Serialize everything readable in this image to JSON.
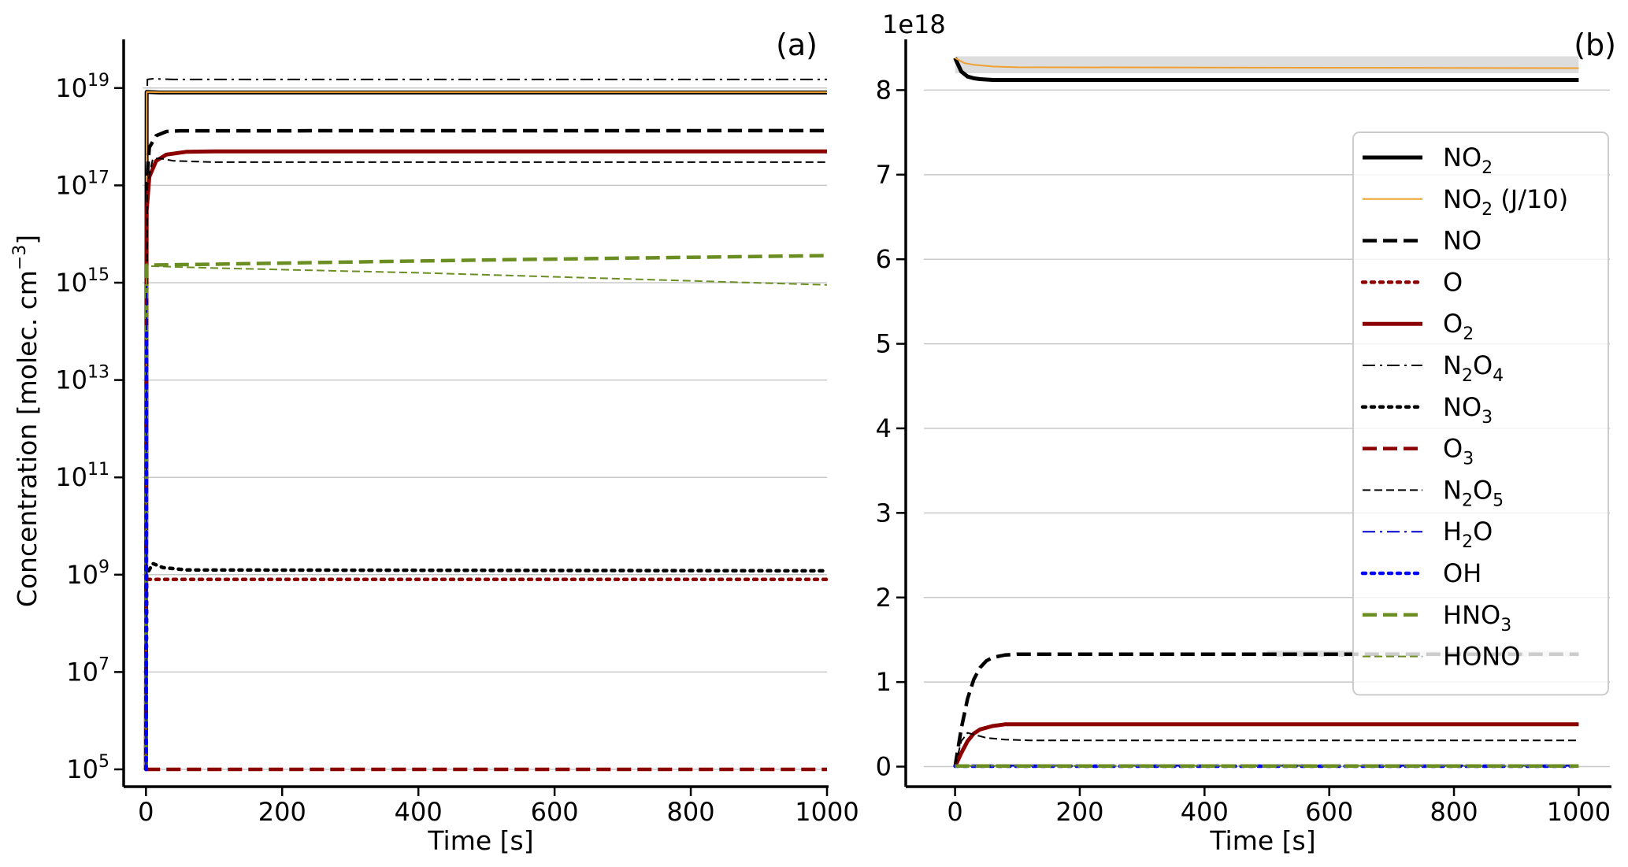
{
  "chart_data": [
    {
      "panel": "(a)",
      "type": "line",
      "xlabel": "Time [s]",
      "ylabel": "Concentration [molec. cm",
      "ylabel_sup": "−3",
      "ylabel_end": "]",
      "yscale": "log",
      "xlim": [
        -5,
        1000
      ],
      "ylim": [
        100000,
        1e+20
      ],
      "xticks": [
        {
          "v": 0,
          "label": "0"
        },
        {
          "v": 200,
          "label": "200"
        },
        {
          "v": 400,
          "label": "400"
        },
        {
          "v": 600,
          "label": "600"
        },
        {
          "v": 800,
          "label": "800"
        },
        {
          "v": 1000,
          "label": "1000"
        }
      ],
      "yticks": [
        {
          "v": 100000.0,
          "exp": "5"
        },
        {
          "v": 10000000.0,
          "exp": "7"
        },
        {
          "v": 1000000000.0,
          "exp": "9"
        },
        {
          "v": 100000000000.0,
          "exp": "11"
        },
        {
          "v": 10000000000000.0,
          "exp": "13"
        },
        {
          "v": 1000000000000000.0,
          "exp": "15"
        },
        {
          "v": 1e+17,
          "exp": "17"
        },
        {
          "v": 1e+19,
          "exp": "19"
        }
      ],
      "tick_base": "10",
      "grid": "horizontal",
      "series": [
        {
          "name": "N2O4",
          "style": "dashdot-thin",
          "color": "#000000",
          "x": [
            0,
            2,
            10,
            40,
            1000
          ],
          "y": [
            100000.0,
            1.5e+19,
            1.55e+19,
            1.5e+19,
            1.5e+19
          ]
        },
        {
          "name": "NO2",
          "style": "solid-thick",
          "color": "#000000",
          "x": [
            0,
            1,
            20,
            1000
          ],
          "y": [
            100000.0,
            8.3e+18,
            8.1e+18,
            8.1e+18
          ]
        },
        {
          "name": "NO2 (J/10)",
          "style": "solid-thin",
          "color": "#f0a030",
          "x": [
            0,
            1,
            20,
            1000
          ],
          "y": [
            100000.0,
            8.3e+18,
            8.2e+18,
            8.2e+18
          ]
        },
        {
          "name": "NO",
          "style": "dashed-thick",
          "color": "#000000",
          "x": [
            0,
            1,
            5,
            15,
            30,
            50,
            1000
          ],
          "y": [
            100000.0,
            1e+17,
            6e+17,
            1.05e+18,
            1.28e+18,
            1.32e+18,
            1.33e+18
          ]
        },
        {
          "name": "O2",
          "style": "solid-thick",
          "color": "#8b0000",
          "x": [
            0,
            1,
            5,
            15,
            30,
            60,
            100,
            1000
          ],
          "y": [
            100000.0,
            3e+16,
            1.5e+17,
            3.2e+17,
            4.3e+17,
            4.9e+17,
            5e+17,
            5e+17
          ]
        },
        {
          "name": "N2O5",
          "style": "dashed-thin",
          "color": "#000000",
          "x": [
            0,
            2,
            10,
            20,
            40,
            100,
            1000
          ],
          "y": [
            100000.0,
            1e+17,
            3.5e+17,
            3.6e+17,
            3.2e+17,
            3e+17,
            3e+17
          ]
        },
        {
          "name": "HNO3",
          "style": "dashed-thick",
          "color": "#6b8e23",
          "x": [
            0,
            1,
            100,
            400,
            700,
            1000
          ],
          "y": [
            100000.0,
            2300000000000000.0,
            2400000000000000.0,
            2800000000000000.0,
            3200000000000000.0,
            3600000000000000.0
          ]
        },
        {
          "name": "HONO",
          "style": "dashed-thin",
          "color": "#6b8e23",
          "x": [
            0,
            1,
            100,
            400,
            700,
            1000
          ],
          "y": [
            100000.0,
            2200000000000000.0,
            2000000000000000.0,
            1600000000000000.0,
            1200000000000000.0,
            900000000000000.0
          ]
        },
        {
          "name": "NO3",
          "style": "dotted-thick",
          "color": "#000000",
          "x": [
            0,
            1,
            10,
            25,
            60,
            1000
          ],
          "y": [
            100000.0,
            1000000000.0,
            1700000000.0,
            1400000000.0,
            1250000000.0,
            1200000000.0
          ]
        },
        {
          "name": "O",
          "style": "dotted-thick",
          "color": "#8b0000",
          "x": [
            0,
            1,
            20,
            1000
          ],
          "y": [
            100000.0,
            800000000.0,
            800000000.0,
            800000000.0
          ]
        },
        {
          "name": "O3",
          "style": "dashed-thick",
          "color": "#8b0000",
          "x": [
            0,
            1,
            1000
          ],
          "y": [
            100000.0,
            100000.0,
            100000.0
          ]
        },
        {
          "name": "H2O",
          "style": "dashdot-thin",
          "color": "#0000cd",
          "x": [
            0,
            0.5,
            1
          ],
          "y": [
            100000.0,
            1000000000.0,
            1000000000000000.0
          ]
        },
        {
          "name": "OH",
          "style": "dotted-thick",
          "color": "#0000ff",
          "x": [
            0,
            0.5,
            1
          ],
          "y": [
            100000.0,
            100000000.0,
            100000000000000.0
          ]
        }
      ]
    },
    {
      "panel": "(b)",
      "type": "line",
      "xlabel": "Time [s]",
      "ylabel": "",
      "offset_text": "1e18",
      "yscale": "linear",
      "xlim": [
        -50,
        1050
      ],
      "ylim": [
        -0.2,
        8.6
      ],
      "xticks": [
        {
          "v": 0,
          "label": "0"
        },
        {
          "v": 200,
          "label": "200"
        },
        {
          "v": 400,
          "label": "400"
        },
        {
          "v": 600,
          "label": "600"
        },
        {
          "v": 800,
          "label": "800"
        },
        {
          "v": 1000,
          "label": "1000"
        }
      ],
      "yticks": [
        {
          "v": 0,
          "label": "0"
        },
        {
          "v": 1,
          "label": "1"
        },
        {
          "v": 2,
          "label": "2"
        },
        {
          "v": 3,
          "label": "3"
        },
        {
          "v": 4,
          "label": "4"
        },
        {
          "v": 5,
          "label": "5"
        },
        {
          "v": 6,
          "label": "6"
        },
        {
          "v": 7,
          "label": "7"
        },
        {
          "v": 8,
          "label": "8"
        }
      ],
      "grid": "horizontal",
      "bands": [
        {
          "name": "NO2 (J/10) band",
          "color": "#d9d9d9",
          "x": [
            0,
            1000
          ],
          "y_low": [
            8.2,
            8.2
          ],
          "y_high": [
            8.4,
            8.4
          ]
        },
        {
          "name": "NO band",
          "color": "#d9d9d9",
          "x": [
            500,
            1000
          ],
          "y_low": [
            1.3,
            1.3
          ],
          "y_high": [
            1.37,
            1.37
          ]
        }
      ],
      "series": [
        {
          "name": "NO2",
          "style": "solid-thick",
          "color": "#000000",
          "x": [
            0,
            5,
            10,
            20,
            30,
            40,
            60,
            1000
          ],
          "y": [
            8.38,
            8.3,
            8.22,
            8.16,
            8.14,
            8.13,
            8.12,
            8.12
          ]
        },
        {
          "name": "NO2 (J/10)",
          "style": "solid-thin",
          "color": "#f0a030",
          "x": [
            0,
            5,
            15,
            30,
            60,
            100,
            1000
          ],
          "y": [
            8.38,
            8.36,
            8.32,
            8.3,
            8.28,
            8.27,
            8.26
          ]
        },
        {
          "name": "NO",
          "style": "dashed-thick",
          "color": "#000000",
          "x": [
            0,
            10,
            20,
            30,
            40,
            50,
            60,
            80,
            100,
            1000
          ],
          "y": [
            0,
            0.45,
            0.8,
            1.03,
            1.17,
            1.25,
            1.29,
            1.32,
            1.33,
            1.33
          ]
        },
        {
          "name": "O2",
          "style": "solid-thick",
          "color": "#8b0000",
          "x": [
            0,
            10,
            20,
            30,
            40,
            60,
            80,
            100,
            1000
          ],
          "y": [
            0,
            0.16,
            0.3,
            0.39,
            0.44,
            0.48,
            0.5,
            0.5,
            0.5
          ]
        },
        {
          "name": "N2O5",
          "style": "dashed-thin",
          "color": "#000000",
          "x": [
            0,
            10,
            20,
            30,
            50,
            80,
            120,
            1000
          ],
          "y": [
            0,
            0.3,
            0.4,
            0.38,
            0.34,
            0.32,
            0.31,
            0.31
          ]
        },
        {
          "name": "N2O4",
          "style": "dashdot-thin",
          "color": "#000000",
          "x": [
            0,
            1000
          ],
          "y": [
            0.015,
            0.015
          ]
        },
        {
          "name": "H2O",
          "style": "dashdot-thin",
          "color": "#0000cd",
          "x": [
            0,
            1000
          ],
          "y": [
            0.01,
            0.01
          ]
        },
        {
          "name": "OH",
          "style": "dotted-thick",
          "color": "#0000ff",
          "x": [
            0,
            1000
          ],
          "y": [
            0.005,
            0.005
          ]
        },
        {
          "name": "HONO",
          "style": "dashed-thin",
          "color": "#6b8e23",
          "x": [
            0,
            1000
          ],
          "y": [
            0.01,
            0.01
          ]
        },
        {
          "name": "HNO3",
          "style": "dashed-thick",
          "color": "#6b8e23",
          "x": [
            0,
            1000
          ],
          "y": [
            0.008,
            0.008
          ]
        }
      ],
      "legend": {
        "placement": "right",
        "entries": [
          {
            "base": "NO",
            "sub": "2",
            "tail": "",
            "style": "solid-thick",
            "color": "#000000"
          },
          {
            "base": "NO",
            "sub": "2",
            "tail": " (J/10)",
            "style": "solid-thin",
            "color": "#f0a030"
          },
          {
            "base": "NO",
            "sub": "",
            "tail": "",
            "style": "dashed-thick",
            "color": "#000000"
          },
          {
            "base": "O",
            "sub": "",
            "tail": "",
            "style": "dotted-thick",
            "color": "#8b0000"
          },
          {
            "base": "O",
            "sub": "2",
            "tail": "",
            "style": "solid-thick",
            "color": "#8b0000"
          },
          {
            "base": "N",
            "sub": "2",
            "base2": "O",
            "sub2": "4",
            "tail": "",
            "style": "dashdot-thin",
            "color": "#000000"
          },
          {
            "base": "NO",
            "sub": "3",
            "tail": "",
            "style": "dotted-thick",
            "color": "#000000"
          },
          {
            "base": "O",
            "sub": "3",
            "tail": "",
            "style": "dashed-thick",
            "color": "#8b0000"
          },
          {
            "base": "N",
            "sub": "2",
            "base2": "O",
            "sub2": "5",
            "tail": "",
            "style": "dashed-thin",
            "color": "#000000"
          },
          {
            "base": "H",
            "sub": "2",
            "base2": "O",
            "sub2": "",
            "tail": "",
            "style": "dashdot-thin",
            "color": "#0000cd"
          },
          {
            "base": "OH",
            "sub": "",
            "tail": "",
            "style": "dotted-thick",
            "color": "#0000ff"
          },
          {
            "base": "HNO",
            "sub": "3",
            "tail": "",
            "style": "dashed-thick",
            "color": "#6b8e23"
          },
          {
            "base": "HONO",
            "sub": "",
            "tail": "",
            "style": "dashed-thin",
            "color": "#6b8e23"
          }
        ]
      }
    }
  ]
}
